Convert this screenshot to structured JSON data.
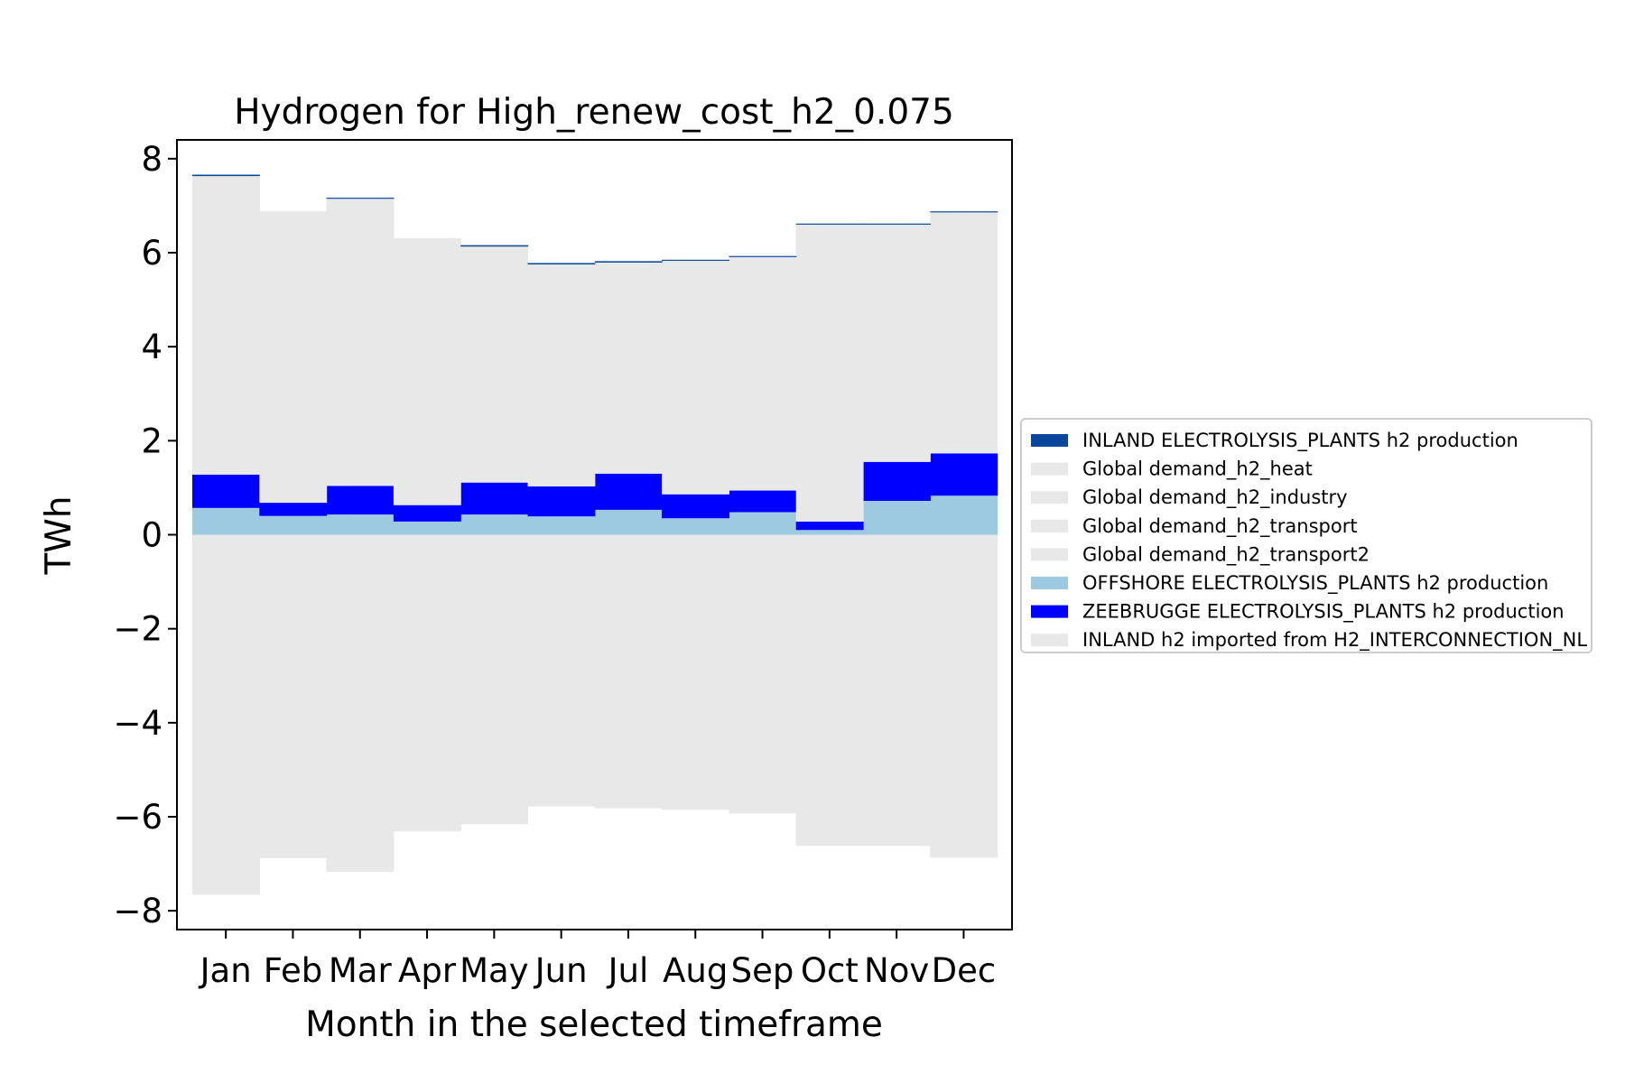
{
  "chart_data": {
    "type": "bar",
    "subtype": "stacked-step",
    "title": "Hydrogen for High_renew_cost_h2_0.075",
    "xlabel": "Month in the selected timeframe",
    "ylabel": "TWh",
    "ylim": [
      -8.4,
      8.4
    ],
    "yticks": [
      8,
      6,
      4,
      2,
      0,
      -2,
      -4,
      -6,
      -8
    ],
    "ytick_labels": [
      "8",
      "6",
      "4",
      "2",
      "0",
      "−2",
      "−4",
      "−6",
      "−8"
    ],
    "categories": [
      "Jan",
      "Feb",
      "Mar",
      "Apr",
      "May",
      "Jun",
      "Jul",
      "Aug",
      "Sep",
      "Oct",
      "Nov",
      "Dec"
    ],
    "grid": false,
    "legend_placement": "outside-right",
    "positive_stack": [
      {
        "name": "OFFSHORE ELECTROLYSIS_PLANTS h2 production",
        "color": "#9ecae1",
        "values": [
          0.57,
          0.4,
          0.43,
          0.28,
          0.43,
          0.39,
          0.53,
          0.35,
          0.48,
          0.1,
          0.72,
          0.83
        ]
      },
      {
        "name": "ZEEBRUGGE ELECTROLYSIS_PLANTS h2 production",
        "color": "#0000ff",
        "values": [
          0.71,
          0.28,
          0.61,
          0.35,
          0.68,
          0.64,
          0.77,
          0.51,
          0.46,
          0.18,
          0.83,
          0.9
        ]
      },
      {
        "name": "INLAND h2 imported from H2_INTERCONNECTION_NL",
        "color": "#e8e8e8",
        "values": [
          6.35,
          6.2,
          6.11,
          5.68,
          5.02,
          4.72,
          4.49,
          4.97,
          4.97,
          6.32,
          5.05,
          5.13
        ]
      },
      {
        "name": "INLAND ELECTROLYSIS_PLANTS h2 production",
        "color": "#08479b",
        "values": [
          0.03,
          0.0,
          0.02,
          0.0,
          0.03,
          0.03,
          0.03,
          0.02,
          0.02,
          0.02,
          0.02,
          0.02
        ]
      }
    ],
    "negative_total": {
      "name": "Global demand (h2_heat, h2_industry, h2_transport, h2_transport2)",
      "color": "#e8e8e8",
      "values": [
        -7.66,
        -6.88,
        -7.17,
        -6.31,
        -6.16,
        -5.78,
        -5.82,
        -5.85,
        -5.93,
        -6.62,
        -6.62,
        -6.87
      ]
    },
    "legend": [
      {
        "label": "INLAND ELECTROLYSIS_PLANTS h2 production",
        "color": "#08479b"
      },
      {
        "label": "Global demand_h2_heat",
        "color": "#e8e8e8"
      },
      {
        "label": "Global demand_h2_industry",
        "color": "#e8e8e8"
      },
      {
        "label": "Global demand_h2_transport",
        "color": "#e8e8e8"
      },
      {
        "label": "Global demand_h2_transport2",
        "color": "#e8e8e8"
      },
      {
        "label": "OFFSHORE ELECTROLYSIS_PLANTS h2 production",
        "color": "#9ecae1"
      },
      {
        "label": "ZEEBRUGGE ELECTROLYSIS_PLANTS h2 production",
        "color": "#0000ff"
      },
      {
        "label": "INLAND h2 imported from H2_INTERCONNECTION_NL",
        "color": "#e8e8e8"
      }
    ]
  }
}
